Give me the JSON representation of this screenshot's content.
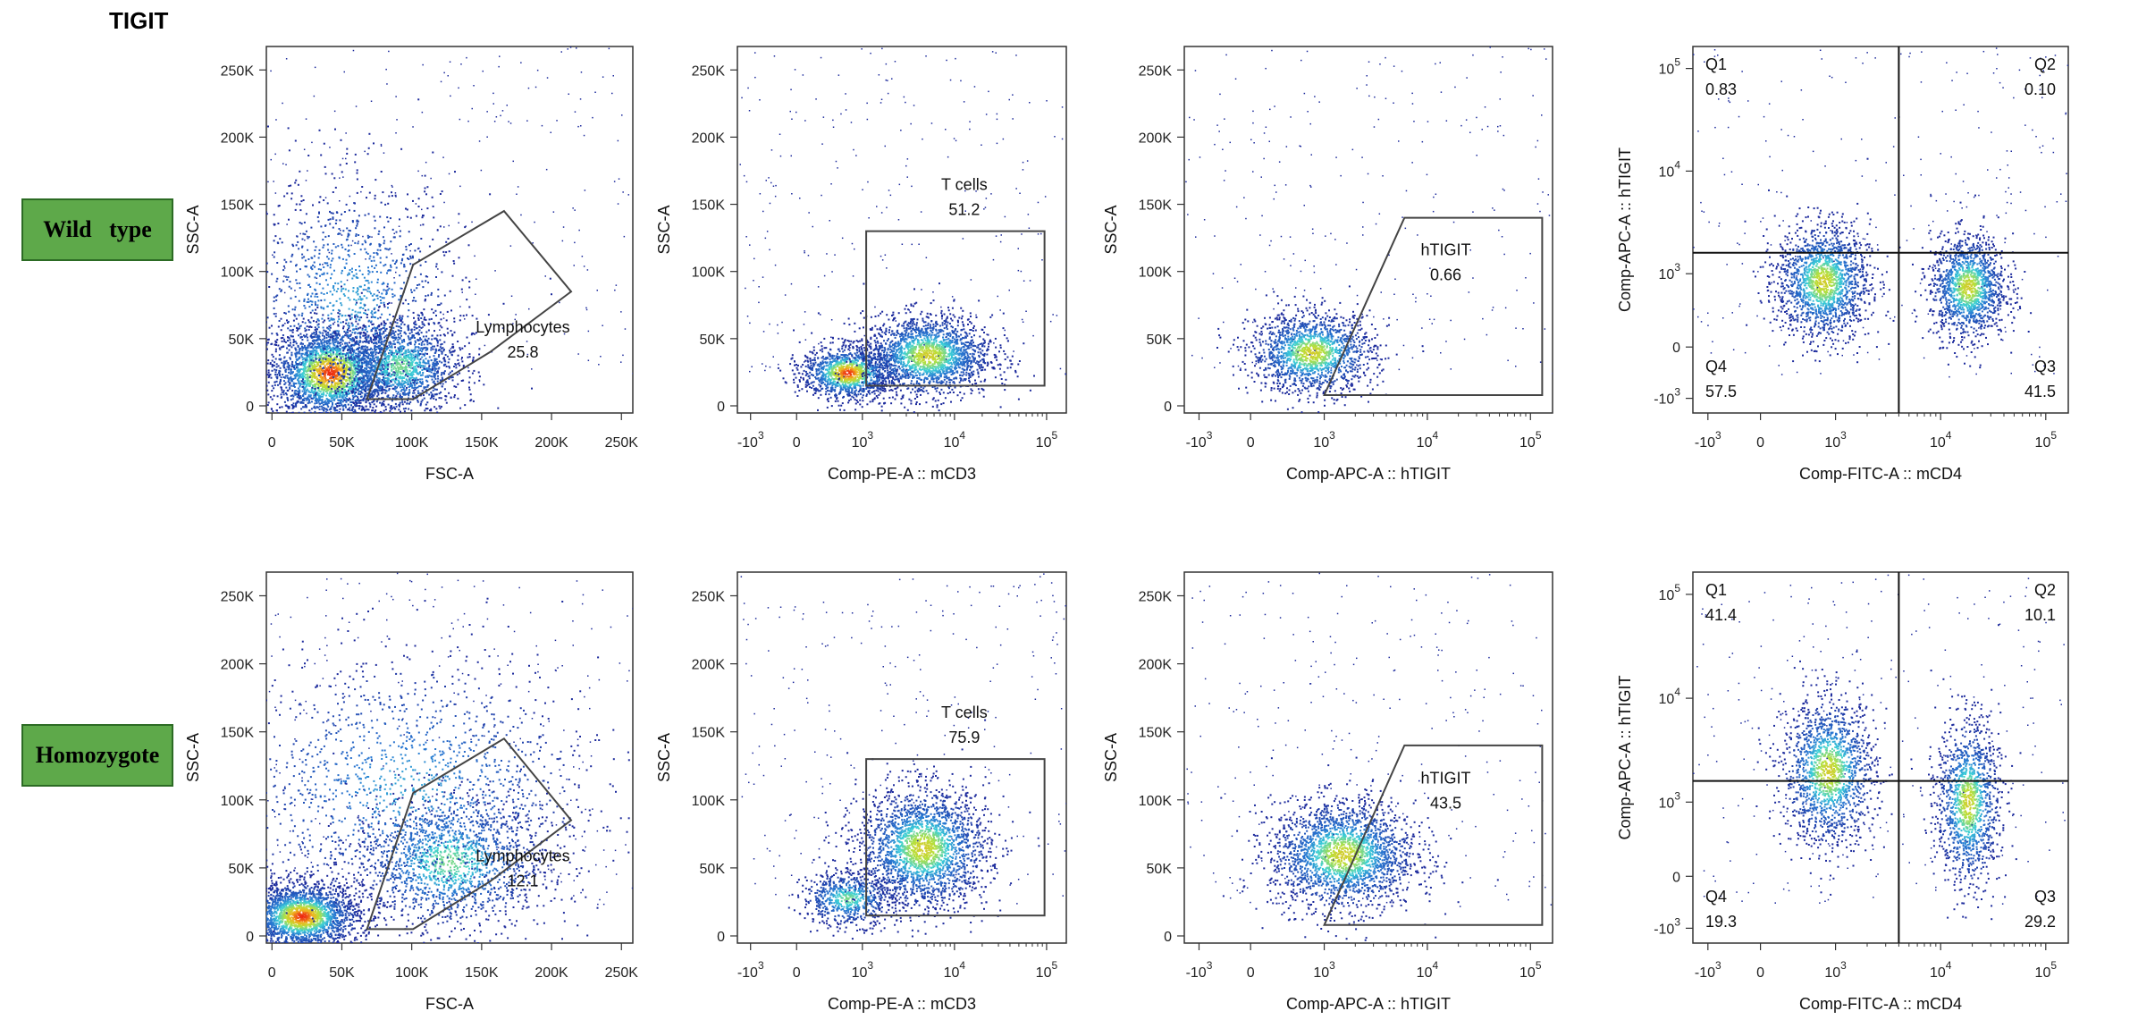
{
  "page": {
    "title": "TIGIT",
    "rows": [
      "Wild   type",
      "Homozygote"
    ]
  },
  "colors": {
    "density_low": "#1c2a9c",
    "density_mid": "#3bd0d8",
    "density_midhigh": "#b8e03a",
    "density_high": "#ee2a12",
    "gate": "#444444",
    "label_bg": "#5ea94a"
  },
  "chart_data": [
    {
      "id": "wt-lymph",
      "type": "scatter",
      "row": 0,
      "col": 0,
      "xlabel": "FSC-A",
      "ylabel": "SSC-A",
      "scale": "linear",
      "xticks": [
        "0",
        "50K",
        "100K",
        "150K",
        "200K",
        "250K"
      ],
      "yticks": [
        "0",
        "50K",
        "100K",
        "150K",
        "200K",
        "250K"
      ],
      "xlim": [
        0,
        262144
      ],
      "ylim": [
        0,
        262144
      ],
      "gate": {
        "name": "Lymphocytes",
        "value": "25.8",
        "type": "polygon",
        "vertices": [
          [
            72000,
            5000
          ],
          [
            105000,
            105000
          ],
          [
            170000,
            145000
          ],
          [
            218000,
            85000
          ],
          [
            160000,
            40000
          ],
          [
            105000,
            5000
          ]
        ]
      },
      "populations": [
        {
          "x": 45000,
          "y": 25000,
          "sx": 22000,
          "sy": 18000,
          "n": 2600,
          "peak": "high"
        },
        {
          "x": 95000,
          "y": 30000,
          "sx": 22000,
          "sy": 18000,
          "n": 1500,
          "peak": "mid"
        },
        {
          "x": 60000,
          "y": 80000,
          "sx": 40000,
          "sy": 45000,
          "n": 1200,
          "peak": "low"
        }
      ]
    },
    {
      "id": "wt-cd3",
      "type": "scatter",
      "row": 0,
      "col": 1,
      "xlabel": "Comp-PE-A :: mCD3",
      "ylabel": "SSC-A",
      "scale": "biex",
      "xticks": [
        "-10^3",
        "0",
        "10^3",
        "10^4",
        "10^5"
      ],
      "yticks": [
        "0",
        "50K",
        "100K",
        "150K",
        "200K",
        "250K"
      ],
      "ylim": [
        0,
        262144
      ],
      "gate": {
        "name": "T cells",
        "value": "51.2",
        "type": "rect",
        "x": [
          1100,
          95000
        ],
        "y": [
          15000,
          130000
        ]
      },
      "populations": [
        {
          "x": 200,
          "y": 25000,
          "sx": 0.25,
          "sy": 10000,
          "n": 1300,
          "peak": "high"
        },
        {
          "x": 5000,
          "y": 38000,
          "sx": 0.35,
          "sy": 15000,
          "n": 2000,
          "peak": "midhigh"
        }
      ]
    },
    {
      "id": "wt-tigit",
      "type": "scatter",
      "row": 0,
      "col": 2,
      "xlabel": "Comp-APC-A :: hTIGIT",
      "ylabel": "SSC-A",
      "scale": "biex",
      "xticks": [
        "-10^3",
        "0",
        "10^3",
        "10^4",
        "10^5"
      ],
      "yticks": [
        "0",
        "50K",
        "100K",
        "150K",
        "200K",
        "250K"
      ],
      "ylim": [
        0,
        262144
      ],
      "gate": {
        "name": "hTIGIT",
        "value": "0.66",
        "type": "polygon",
        "vertices": [
          [
            1000,
            8000
          ],
          [
            6000,
            140000
          ],
          [
            130000,
            140000
          ],
          [
            130000,
            8000
          ]
        ]
      },
      "populations": [
        {
          "x": 300,
          "y": 40000,
          "sx": 0.3,
          "sy": 15000,
          "n": 1600,
          "peak": "midhigh"
        }
      ]
    },
    {
      "id": "wt-quad",
      "type": "quadrant",
      "row": 0,
      "col": 3,
      "xlabel": "Comp-FITC-A :: mCD4",
      "ylabel": "Comp-APC-A :: hTIGIT",
      "scale": "biex2",
      "xticks": [
        "-10^3",
        "0",
        "10^3",
        "10^4",
        "10^5"
      ],
      "yticks": [
        "-10^3",
        "0",
        "10^3",
        "10^4",
        "10^5"
      ],
      "quadrant_split": {
        "x": 4000,
        "y": 1600
      },
      "quadrants": [
        {
          "name": "Q1",
          "value": "0.83"
        },
        {
          "name": "Q2",
          "value": "0.10"
        },
        {
          "name": "Q3",
          "value": "41.5"
        },
        {
          "name": "Q4",
          "value": "57.5"
        }
      ],
      "populations": [
        {
          "x": 300,
          "y": 500,
          "sx": 0.22,
          "sy": 0.28,
          "n": 1700,
          "peak": "midhigh"
        },
        {
          "x": 18000,
          "y": 300,
          "sx": 0.18,
          "sy": 0.25,
          "n": 1400,
          "peak": "midhigh"
        }
      ]
    },
    {
      "id": "ho-lymph",
      "type": "scatter",
      "row": 1,
      "col": 0,
      "xlabel": "FSC-A",
      "ylabel": "SSC-A",
      "scale": "linear",
      "xticks": [
        "0",
        "50K",
        "100K",
        "150K",
        "200K",
        "250K"
      ],
      "yticks": [
        "0",
        "50K",
        "100K",
        "150K",
        "200K",
        "250K"
      ],
      "xlim": [
        0,
        262144
      ],
      "ylim": [
        0,
        262144
      ],
      "gate": {
        "name": "Lymphocytes",
        "value": "12.1",
        "type": "polygon",
        "vertices": [
          [
            72000,
            5000
          ],
          [
            105000,
            105000
          ],
          [
            170000,
            145000
          ],
          [
            218000,
            85000
          ],
          [
            160000,
            40000
          ],
          [
            105000,
            5000
          ]
        ]
      },
      "populations": [
        {
          "x": 25000,
          "y": 15000,
          "sx": 20000,
          "sy": 12000,
          "n": 2200,
          "peak": "high"
        },
        {
          "x": 130000,
          "y": 55000,
          "sx": 35000,
          "sy": 25000,
          "n": 1600,
          "peak": "mid"
        },
        {
          "x": 100000,
          "y": 110000,
          "sx": 70000,
          "sy": 50000,
          "n": 1500,
          "peak": "low"
        }
      ]
    },
    {
      "id": "ho-cd3",
      "type": "scatter",
      "row": 1,
      "col": 1,
      "xlabel": "Comp-PE-A :: mCD3",
      "ylabel": "SSC-A",
      "scale": "biex",
      "xticks": [
        "-10^3",
        "0",
        "10^3",
        "10^4",
        "10^5"
      ],
      "yticks": [
        "0",
        "50K",
        "100K",
        "150K",
        "200K",
        "250K"
      ],
      "ylim": [
        0,
        262144
      ],
      "gate": {
        "name": "T cells",
        "value": "75.9",
        "type": "rect",
        "x": [
          1100,
          95000
        ],
        "y": [
          15000,
          130000
        ]
      },
      "populations": [
        {
          "x": 200,
          "y": 28000,
          "sx": 0.25,
          "sy": 10000,
          "n": 700,
          "peak": "mid"
        },
        {
          "x": 4500,
          "y": 65000,
          "sx": 0.35,
          "sy": 22000,
          "n": 2300,
          "peak": "midhigh"
        }
      ]
    },
    {
      "id": "ho-tigit",
      "type": "scatter",
      "row": 1,
      "col": 2,
      "xlabel": "Comp-APC-A :: hTIGIT",
      "ylabel": "SSC-A",
      "scale": "biex",
      "xticks": [
        "-10^3",
        "0",
        "10^3",
        "10^4",
        "10^5"
      ],
      "yticks": [
        "0",
        "50K",
        "100K",
        "150K",
        "200K",
        "250K"
      ],
      "ylim": [
        0,
        262144
      ],
      "gate": {
        "name": "hTIGIT",
        "value": "43.5",
        "type": "polygon",
        "vertices": [
          [
            1000,
            8000
          ],
          [
            6000,
            140000
          ],
          [
            130000,
            140000
          ],
          [
            130000,
            8000
          ]
        ]
      },
      "populations": [
        {
          "x": 1500,
          "y": 60000,
          "sx": 0.35,
          "sy": 20000,
          "n": 2300,
          "peak": "midhigh"
        }
      ]
    },
    {
      "id": "ho-quad",
      "type": "quadrant",
      "row": 1,
      "col": 3,
      "xlabel": "Comp-FITC-A :: mCD4",
      "ylabel": "Comp-APC-A :: hTIGIT",
      "scale": "biex2",
      "xticks": [
        "-10^3",
        "0",
        "10^3",
        "10^4",
        "10^5"
      ],
      "yticks": [
        "-10^3",
        "0",
        "10^3",
        "10^4",
        "10^5"
      ],
      "quadrant_split": {
        "x": 4000,
        "y": 1600
      },
      "quadrants": [
        {
          "name": "Q1",
          "value": "41.4"
        },
        {
          "name": "Q2",
          "value": "10.1"
        },
        {
          "name": "Q3",
          "value": "29.2"
        },
        {
          "name": "Q4",
          "value": "19.3"
        }
      ],
      "populations": [
        {
          "x": 500,
          "y": 2000,
          "sx": 0.22,
          "sy": 0.35,
          "n": 1600,
          "peak": "midhigh"
        },
        {
          "x": 18000,
          "y": 1000,
          "sx": 0.15,
          "sy": 0.4,
          "n": 1300,
          "peak": "midhigh"
        }
      ]
    }
  ]
}
